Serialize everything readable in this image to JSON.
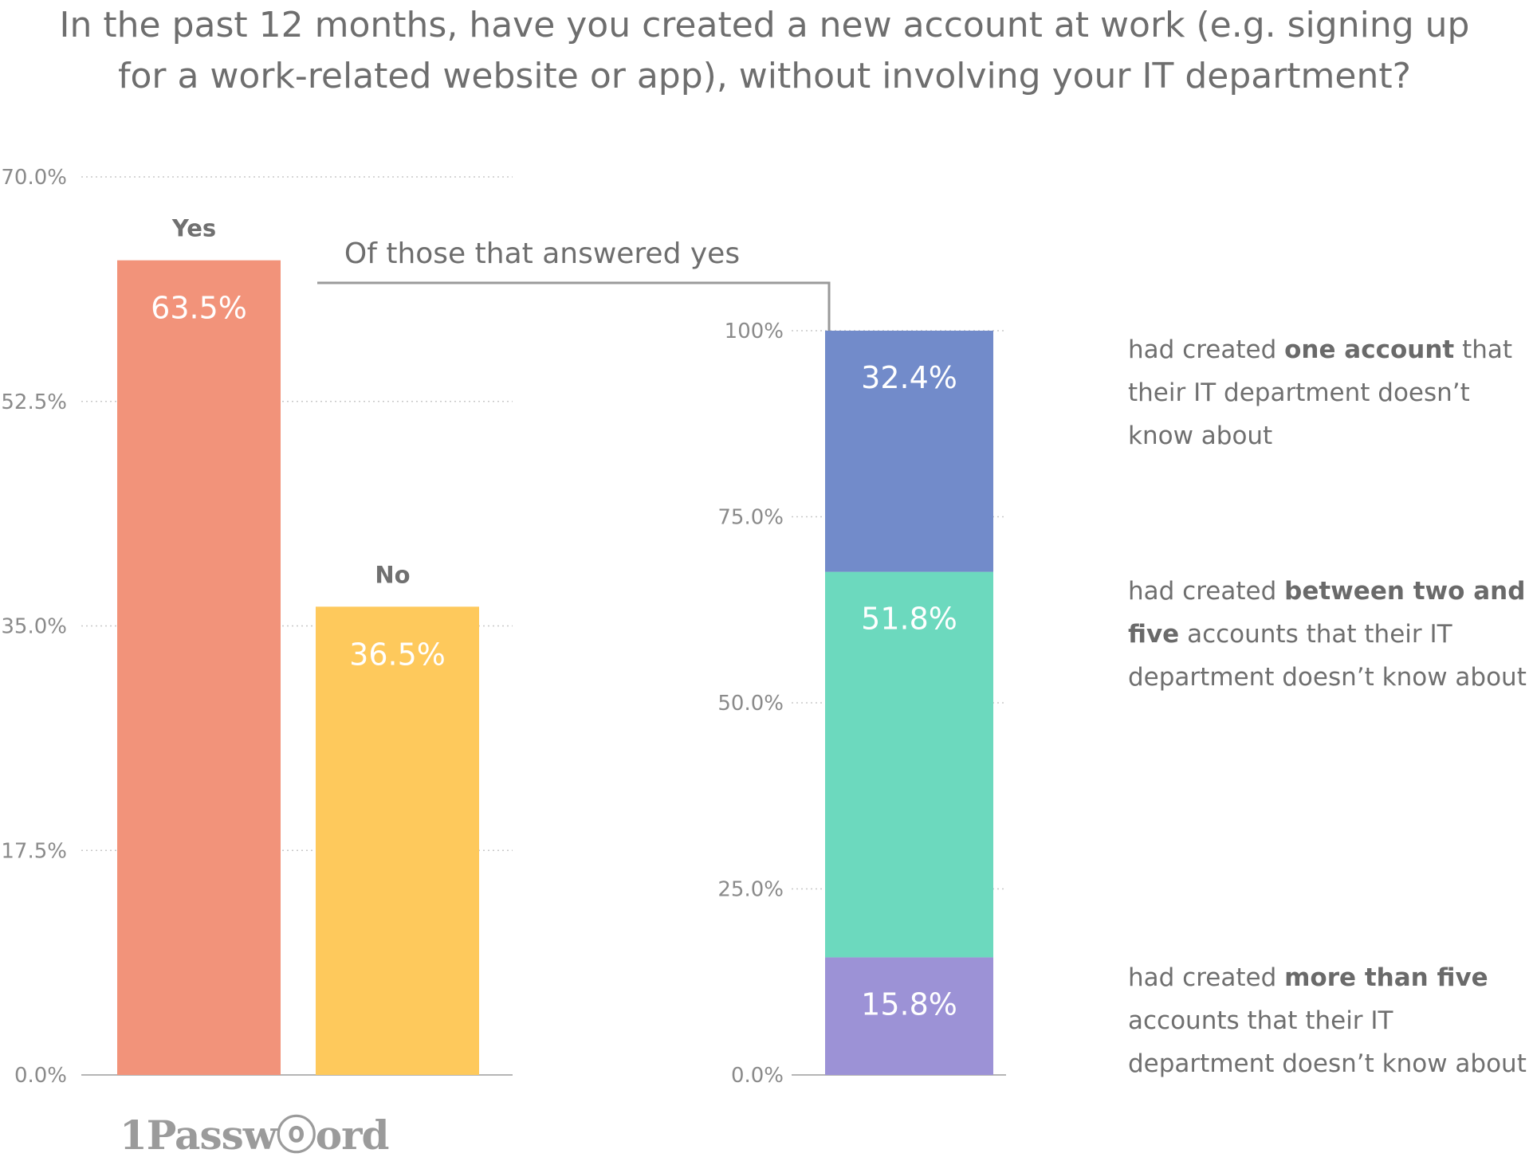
{
  "title": {
    "line1": "In the past 12 months, have you created a new account at work (e.g. signing up",
    "line2": "for a work-related website or app), without involving your IT department?"
  },
  "callout": "Of those that answered yes",
  "annotations": [
    {
      "pre": "had created ",
      "bold": "one account",
      "post": " that their IT department doesn’t know about"
    },
    {
      "pre": "had created ",
      "bold": "between two and five",
      "post": " accounts that their IT department doesn’t know about"
    },
    {
      "pre": "had created ",
      "bold": "more than five",
      "post": " accounts that their IT department doesn’t know about"
    }
  ],
  "logo": "1Passwⓞord",
  "chart_data": [
    {
      "type": "bar",
      "categories": [
        "Yes",
        "No"
      ],
      "values": [
        63.5,
        36.5
      ],
      "data_labels": [
        "63.5%",
        "36.5%"
      ],
      "colors": [
        "#f2937a",
        "#fec95c"
      ],
      "ylim": [
        0,
        70
      ],
      "yticks": [
        "0.0%",
        "17.5%",
        "35.0%",
        "52.5%",
        "70.0%"
      ],
      "grid": true
    },
    {
      "type": "bar",
      "stacked": true,
      "series": [
        {
          "value": 15.8,
          "label": "15.8%",
          "color": "#9c92d6"
        },
        {
          "value": 51.8,
          "label": "51.8%",
          "color": "#6cd9be"
        },
        {
          "value": 32.4,
          "label": "32.4%",
          "color": "#728bca"
        }
      ],
      "ylim": [
        0,
        100
      ],
      "yticks": [
        "0.0%",
        "25.0%",
        "50.0%",
        "75.0%",
        "100%"
      ],
      "grid": true
    }
  ]
}
